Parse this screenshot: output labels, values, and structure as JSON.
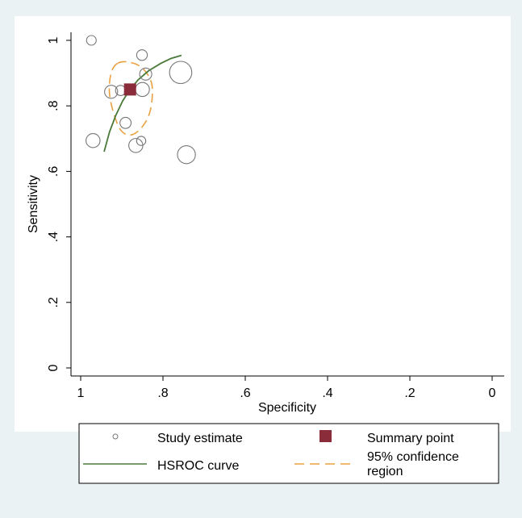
{
  "chart_data": {
    "type": "scatter",
    "xlabel": "Specificity",
    "ylabel": "Sensitivity",
    "xlim": [
      1,
      0
    ],
    "ylim": [
      0,
      1
    ],
    "x_reversed": true,
    "grid": false,
    "legend_placement": "bottom",
    "x_ticks": [
      {
        "value": 1,
        "label": "1"
      },
      {
        "value": 0.8,
        "label": ".8"
      },
      {
        "value": 0.6,
        "label": ".6"
      },
      {
        "value": 0.4,
        "label": ".4"
      },
      {
        "value": 0.2,
        "label": ".2"
      },
      {
        "value": 0,
        "label": "0"
      }
    ],
    "y_ticks": [
      {
        "value": 0,
        "label": "0"
      },
      {
        "value": 0.2,
        "label": ".2"
      },
      {
        "value": 0.4,
        "label": ".4"
      },
      {
        "value": 0.6,
        "label": ".6"
      },
      {
        "value": 0.8,
        "label": ".8"
      },
      {
        "value": 1,
        "label": "1"
      }
    ],
    "series": [
      {
        "type": "scatter",
        "legend": "Study estimate",
        "color": "#777777",
        "points": [
          {
            "x": 0.974,
            "y": 1.0,
            "weight": 1.0
          },
          {
            "x": 0.851,
            "y": 0.955,
            "weight": 1.1
          },
          {
            "x": 0.842,
            "y": 0.897,
            "weight": 1.25
          },
          {
            "x": 0.757,
            "y": 0.902,
            "weight": 2.3
          },
          {
            "x": 0.926,
            "y": 0.843,
            "weight": 1.35
          },
          {
            "x": 0.903,
            "y": 0.847,
            "weight": 1.05
          },
          {
            "x": 0.85,
            "y": 0.85,
            "weight": 1.45
          },
          {
            "x": 0.891,
            "y": 0.748,
            "weight": 1.15
          },
          {
            "x": 0.97,
            "y": 0.694,
            "weight": 1.45
          },
          {
            "x": 0.853,
            "y": 0.693,
            "weight": 0.95
          },
          {
            "x": 0.866,
            "y": 0.679,
            "weight": 1.45
          },
          {
            "x": 0.743,
            "y": 0.651,
            "weight": 1.85
          }
        ]
      },
      {
        "type": "point",
        "legend": "Summary point",
        "color": "#8b2c3a",
        "x": 0.88,
        "y": 0.85
      },
      {
        "type": "line",
        "legend": "HSROC curve",
        "color": "#4a7a3a",
        "points": [
          {
            "x": 0.943,
            "y": 0.66
          },
          {
            "x": 0.93,
            "y": 0.72
          },
          {
            "x": 0.915,
            "y": 0.77
          },
          {
            "x": 0.898,
            "y": 0.815
          },
          {
            "x": 0.88,
            "y": 0.85
          },
          {
            "x": 0.86,
            "y": 0.88
          },
          {
            "x": 0.835,
            "y": 0.907
          },
          {
            "x": 0.805,
            "y": 0.93
          },
          {
            "x": 0.78,
            "y": 0.945
          },
          {
            "x": 0.755,
            "y": 0.954
          }
        ]
      },
      {
        "type": "region",
        "legend": "95% confidence region",
        "color": "#e8a040",
        "points": [
          {
            "x": 0.91,
            "y": 0.93
          },
          {
            "x": 0.88,
            "y": 0.933
          },
          {
            "x": 0.848,
            "y": 0.913
          },
          {
            "x": 0.827,
            "y": 0.865
          },
          {
            "x": 0.83,
            "y": 0.79
          },
          {
            "x": 0.848,
            "y": 0.74
          },
          {
            "x": 0.875,
            "y": 0.712
          },
          {
            "x": 0.9,
            "y": 0.722
          },
          {
            "x": 0.918,
            "y": 0.77
          },
          {
            "x": 0.93,
            "y": 0.838
          },
          {
            "x": 0.926,
            "y": 0.9
          }
        ]
      }
    ]
  }
}
